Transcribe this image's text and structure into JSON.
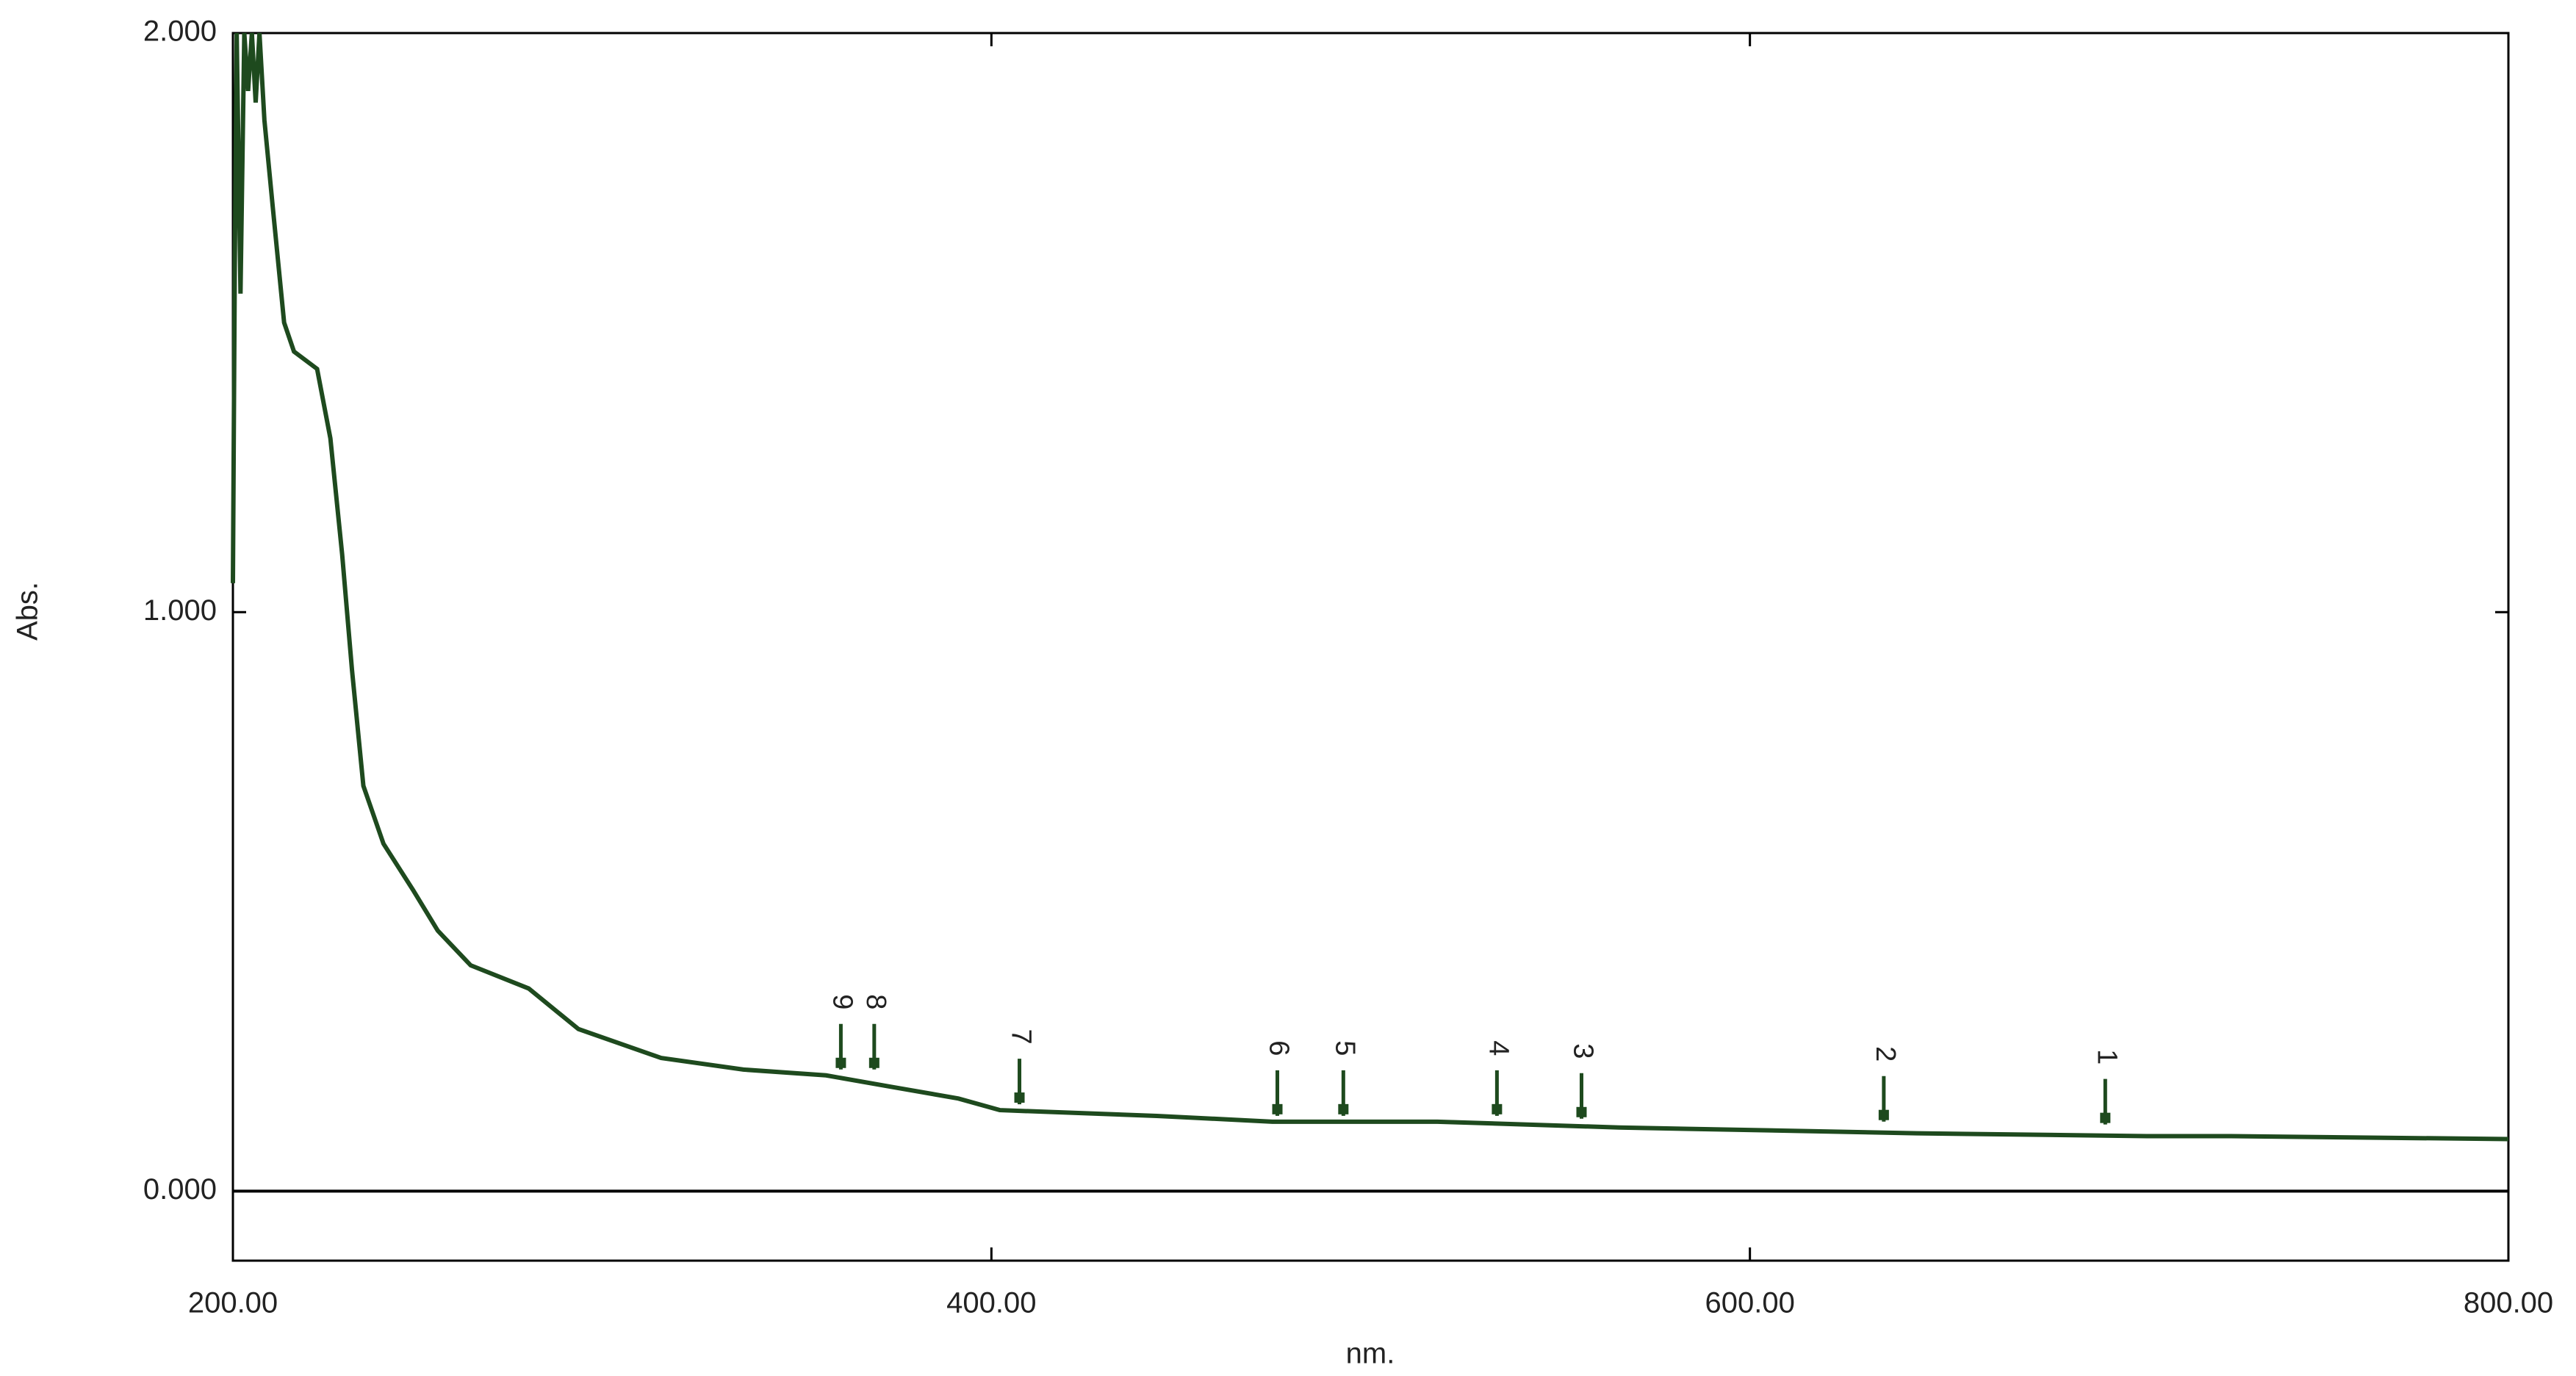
{
  "chart_data": {
    "type": "line",
    "xlabel": "nm.",
    "ylabel": "Abs.",
    "xlim": [
      200,
      800
    ],
    "ylim": [
      -0.12,
      2.0
    ],
    "xticks": [
      {
        "value": 200,
        "label": "200.00"
      },
      {
        "value": 400,
        "label": "400.00"
      },
      {
        "value": 600,
        "label": "600.00"
      },
      {
        "value": 800,
        "label": "800.00"
      }
    ],
    "yticks": [
      {
        "value": 0,
        "label": "0.000"
      },
      {
        "value": 1,
        "label": "1.000"
      },
      {
        "value": 2,
        "label": "2.000"
      }
    ],
    "grid": false,
    "zero_line": true,
    "series": [
      {
        "color": "#1e4a1e",
        "x": [
          200,
          200.5,
          201,
          202,
          203,
          204,
          205,
          206,
          207,
          208.3,
          210.5,
          213.5,
          216.1,
          222.2,
          225.7,
          228.8,
          231.4,
          234.4,
          239.7,
          247.5,
          254.0,
          262.7,
          278.0,
          291.1,
          312.9,
          334.6,
          356.4,
          373.8,
          391.3,
          402.2,
          443.6,
          474.1,
          517.6,
          565.5,
          644.0,
          705.0,
          726.8,
          800
        ],
        "values": [
          1.05,
          1.6,
          2.0,
          1.55,
          2.0,
          1.9,
          2.0,
          1.88,
          2.0,
          1.85,
          1.7,
          1.5,
          1.45,
          1.42,
          1.3,
          1.1,
          0.9,
          0.7,
          0.6,
          0.52,
          0.45,
          0.39,
          0.35,
          0.28,
          0.23,
          0.21,
          0.2,
          0.18,
          0.16,
          0.14,
          0.13,
          0.12,
          0.12,
          0.11,
          0.1,
          0.095,
          0.095,
          0.09
        ]
      }
    ],
    "peaks": [
      {
        "label": "1",
        "x": 693.7,
        "y": 0.105
      },
      {
        "label": "2",
        "x": 635.3,
        "y": 0.11
      },
      {
        "label": "3",
        "x": 555.6,
        "y": 0.115
      },
      {
        "label": "4",
        "x": 533.3,
        "y": 0.12
      },
      {
        "label": "5",
        "x": 492.8,
        "y": 0.12
      },
      {
        "label": "6",
        "x": 475.4,
        "y": 0.12
      },
      {
        "label": "7",
        "x": 407.4,
        "y": 0.14
      },
      {
        "label": "8",
        "x": 369.1,
        "y": 0.2
      },
      {
        "label": "9",
        "x": 360.3,
        "y": 0.2
      }
    ]
  }
}
